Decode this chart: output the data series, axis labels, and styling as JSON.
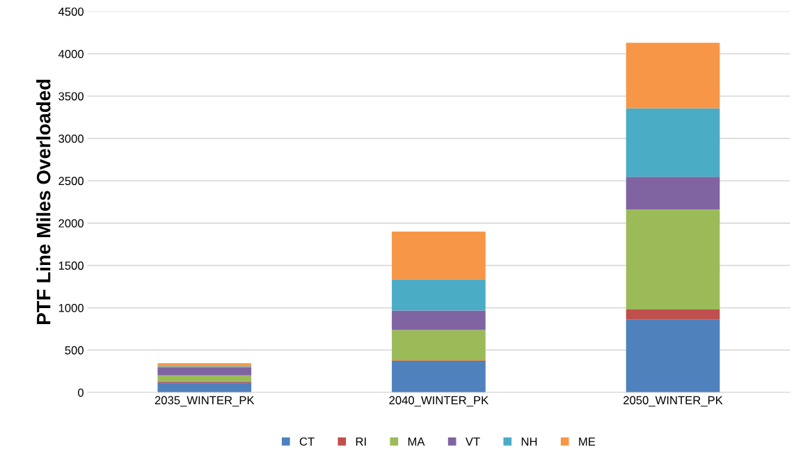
{
  "chart_data": {
    "type": "bar",
    "stacked": true,
    "ylabel": "PTF Line Miles Overloaded",
    "categories": [
      "2035_WINTER_PK",
      "2040_WINTER_PK",
      "2050_WINTER_PK"
    ],
    "series": [
      {
        "name": "CT",
        "color": "#4f81bd",
        "values": [
          115,
          364,
          858
        ]
      },
      {
        "name": "RI",
        "color": "#c0504d",
        "values": [
          14,
          14,
          123
        ]
      },
      {
        "name": "MA",
        "color": "#9bbb59",
        "values": [
          73,
          359,
          1179
        ]
      },
      {
        "name": "VT",
        "color": "#8064a2",
        "values": [
          88,
          230,
          387
        ]
      },
      {
        "name": "NH",
        "color": "#4bacc6",
        "values": [
          19,
          370,
          809
        ]
      },
      {
        "name": "ME",
        "color": "#f79646",
        "values": [
          37,
          563,
          774
        ]
      }
    ],
    "ylim": [
      0,
      4500
    ],
    "yticks": [
      0,
      500,
      1000,
      1500,
      2000,
      2500,
      3000,
      3500,
      4000,
      4500
    ],
    "grid": "y",
    "legend": "bottom"
  }
}
